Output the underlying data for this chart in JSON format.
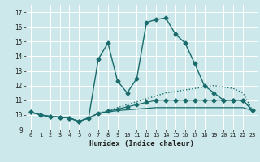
{
  "xlabel": "Humidex (Indice chaleur)",
  "xlim": [
    -0.5,
    23.5
  ],
  "ylim": [
    9,
    17.5
  ],
  "yticks": [
    9,
    10,
    11,
    12,
    13,
    14,
    15,
    16,
    17
  ],
  "xticks": [
    0,
    1,
    2,
    3,
    4,
    5,
    6,
    7,
    8,
    9,
    10,
    11,
    12,
    13,
    14,
    15,
    16,
    17,
    18,
    19,
    20,
    21,
    22,
    23
  ],
  "bg_color": "#cce8ea",
  "line_color": "#1a6b6b",
  "grid_color": "#ffffff",
  "curves": [
    {
      "x": [
        0,
        1,
        2,
        3,
        4,
        5,
        6,
        7,
        8,
        9,
        10,
        11,
        12,
        13,
        14,
        15,
        16,
        17,
        18,
        19,
        20,
        21,
        22,
        23
      ],
      "y": [
        10.2,
        10.0,
        9.9,
        9.85,
        9.8,
        9.55,
        9.8,
        10.1,
        10.2,
        10.3,
        10.35,
        10.4,
        10.45,
        10.5,
        10.5,
        10.5,
        10.5,
        10.5,
        10.5,
        10.5,
        10.5,
        10.5,
        10.5,
        10.3
      ],
      "style": "-",
      "marker": "None",
      "ms": 0,
      "lw": 0.9
    },
    {
      "x": [
        0,
        1,
        2,
        3,
        4,
        5,
        6,
        7,
        8,
        9,
        10,
        11,
        12,
        13,
        14,
        15,
        16,
        17,
        18,
        19,
        20,
        21,
        22,
        23
      ],
      "y": [
        10.2,
        10.0,
        9.9,
        9.85,
        9.8,
        9.55,
        9.8,
        10.1,
        10.25,
        10.4,
        10.55,
        10.7,
        10.85,
        11.0,
        11.0,
        11.0,
        11.0,
        11.0,
        11.0,
        11.0,
        11.0,
        11.0,
        11.0,
        10.3
      ],
      "style": "-",
      "marker": "D",
      "ms": 2.5,
      "lw": 0.9
    },
    {
      "x": [
        0,
        1,
        2,
        3,
        4,
        5,
        6,
        7,
        8,
        9,
        10,
        11,
        12,
        13,
        14,
        15,
        16,
        17,
        18,
        19,
        20,
        21,
        22,
        23
      ],
      "y": [
        10.2,
        10.0,
        9.9,
        9.85,
        9.8,
        9.55,
        9.8,
        10.1,
        10.3,
        10.5,
        10.7,
        10.9,
        11.1,
        11.3,
        11.5,
        11.6,
        11.7,
        11.8,
        11.9,
        12.0,
        11.9,
        11.8,
        11.5,
        10.3
      ],
      "style": ":",
      "marker": "None",
      "ms": 0,
      "lw": 1.0
    },
    {
      "x": [
        0,
        1,
        2,
        3,
        4,
        5,
        6,
        7,
        8,
        9,
        10,
        11,
        12,
        13,
        14,
        15,
        16,
        17,
        18,
        19,
        20,
        21,
        22,
        23
      ],
      "y": [
        10.2,
        10.0,
        9.9,
        9.85,
        9.8,
        9.55,
        9.8,
        13.8,
        14.9,
        12.3,
        11.5,
        12.5,
        16.3,
        16.5,
        16.6,
        15.5,
        14.9,
        13.5,
        12.0,
        11.5,
        11.0,
        11.0,
        11.0,
        10.3
      ],
      "style": "-",
      "marker": "D",
      "ms": 2.5,
      "lw": 1.0
    }
  ]
}
